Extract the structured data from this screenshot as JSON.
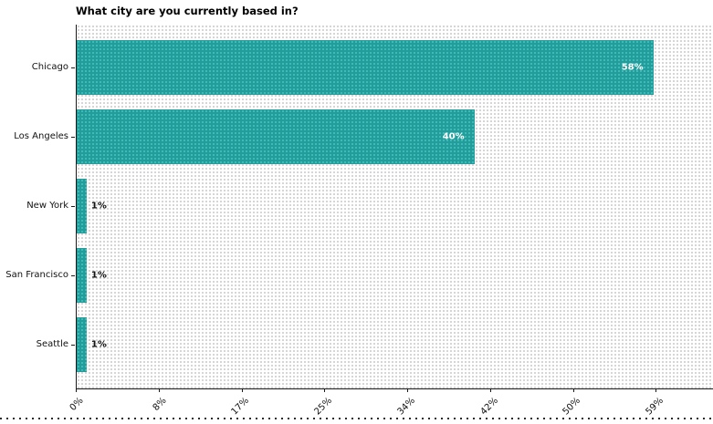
{
  "chart_data": {
    "type": "bar",
    "orientation": "horizontal",
    "title": "What city are you currently based in?",
    "categories": [
      "Chicago",
      "Los Angeles",
      "New York",
      "San Francisco",
      "Seattle"
    ],
    "values": [
      58,
      40,
      1,
      1,
      1
    ],
    "value_labels": [
      "58%",
      "40%",
      "1%",
      "1%",
      "1%"
    ],
    "xtick_labels": [
      "0%",
      "8%",
      "17%",
      "25%",
      "34%",
      "42%",
      "50%",
      "59%"
    ],
    "xtick_values": [
      0,
      8.33,
      16.67,
      25,
      33.33,
      41.67,
      50,
      58.33
    ],
    "axis_max": 64,
    "xlabel": "",
    "ylabel": "",
    "grid": false,
    "legend": null,
    "bar_color": "#1f9e9e",
    "inside_label_color": "#ffffff",
    "outside_label_color": "#111111",
    "inside_label_threshold": 10
  }
}
